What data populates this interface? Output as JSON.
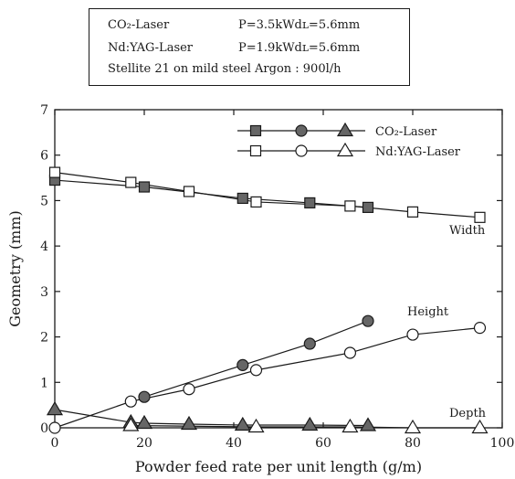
{
  "info_box": {
    "line1_laser": "CO₂-Laser",
    "line1_params": "P=3.5kWdʟ=5.6mm",
    "line2_laser": "Nd:YAG-Laser",
    "line2_params": "P=1.9kWdʟ=5.6mm",
    "line3": "Stellite 21 on mild steel Argon : 900l/h"
  },
  "chart_data": {
    "type": "line",
    "xlabel": "Powder feed rate per unit length (g/m)",
    "ylabel": "Geometry (mm)",
    "xlim": [
      0,
      100
    ],
    "ylim": [
      0,
      7
    ],
    "xticks": [
      0,
      20,
      40,
      60,
      80,
      100
    ],
    "yticks": [
      0,
      1,
      2,
      3,
      4,
      5,
      6,
      7
    ],
    "grid": false,
    "legend_position": "top-right",
    "legend": {
      "rows": [
        {
          "label": "CO₂-Laser",
          "filled": true
        },
        {
          "label": "Nd:YAG-Laser",
          "filled": false
        }
      ]
    },
    "annotations": [
      "Width",
      "Height",
      "Depth"
    ],
    "series": [
      {
        "laser": "CO2",
        "quantity": "Width",
        "marker": "square",
        "filled": true,
        "x": [
          0,
          20,
          42,
          57,
          70
        ],
        "y": [
          5.45,
          5.3,
          5.05,
          4.95,
          4.85
        ]
      },
      {
        "laser": "Nd:YAG",
        "quantity": "Width",
        "marker": "square",
        "filled": false,
        "x": [
          0,
          17,
          30,
          45,
          66,
          80,
          95
        ],
        "y": [
          5.62,
          5.4,
          5.2,
          4.97,
          4.88,
          4.75,
          4.63
        ]
      },
      {
        "laser": "CO2",
        "quantity": "Height",
        "marker": "circle",
        "filled": true,
        "x": [
          20,
          42,
          57,
          70
        ],
        "y": [
          0.68,
          1.38,
          1.85,
          2.35
        ]
      },
      {
        "laser": "Nd:YAG",
        "quantity": "Height",
        "marker": "circle",
        "filled": false,
        "x": [
          0,
          17,
          30,
          45,
          66,
          80,
          95
        ],
        "y": [
          0.0,
          0.58,
          0.85,
          1.27,
          1.65,
          2.05,
          2.2
        ]
      },
      {
        "laser": "CO2",
        "quantity": "Depth",
        "marker": "triangle",
        "filled": true,
        "x": [
          0,
          17,
          20,
          30,
          42,
          57,
          70
        ],
        "y": [
          0.4,
          0.12,
          0.1,
          0.08,
          0.06,
          0.06,
          0.05
        ]
      },
      {
        "laser": "Nd:YAG",
        "quantity": "Depth",
        "marker": "triangle",
        "filled": false,
        "x": [
          17,
          45,
          66,
          80,
          95
        ],
        "y": [
          0.05,
          0.02,
          0.02,
          0.0,
          0.0
        ]
      }
    ]
  }
}
